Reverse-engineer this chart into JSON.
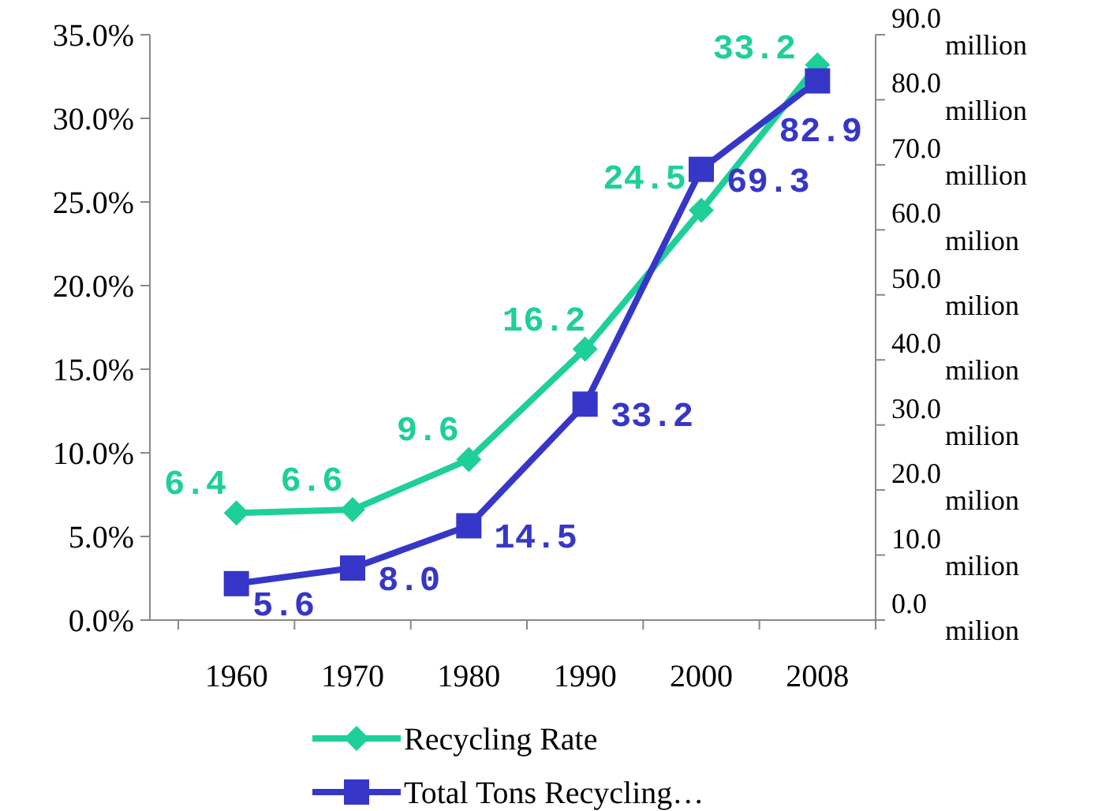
{
  "chart_data": {
    "type": "line",
    "categories": [
      "1960",
      "1970",
      "1980",
      "1990",
      "2000",
      "2008"
    ],
    "series": [
      {
        "name": "Recycling Rate",
        "color": "#1fcf9a",
        "values": [
          6.4,
          6.6,
          9.6,
          16.2,
          24.5,
          33.2
        ],
        "value_labels": [
          "6.4",
          "6.6",
          "9.6",
          "16.2",
          "24.5",
          "33.2"
        ],
        "marker": "diamond"
      },
      {
        "name": "Total Tons Recycling…",
        "color": "#3636c8",
        "values": [
          5.6,
          8.0,
          14.5,
          33.2,
          69.3,
          82.9
        ],
        "value_labels": [
          "5.6",
          "8.0",
          "14.5",
          "33.2",
          "69.3",
          "82.9"
        ],
        "marker": "square",
        "axis": "y2"
      }
    ],
    "ylim": [
      0,
      35
    ],
    "yticks": [
      {
        "value": 0,
        "label": "0.0%"
      },
      {
        "value": 5,
        "label": "5.0%"
      },
      {
        "value": 10,
        "label": "10.0%"
      },
      {
        "value": 15,
        "label": "15.0%"
      },
      {
        "value": 20,
        "label": "20.0%"
      },
      {
        "value": 25,
        "label": "25.0%"
      },
      {
        "value": 30,
        "label": "30.0%"
      },
      {
        "value": 35,
        "label": "35.0%"
      }
    ],
    "y2lim": [
      0,
      90
    ],
    "y2ticks": [
      {
        "value": 0,
        "label": "0.0 milion"
      },
      {
        "value": 10,
        "label": "10.0 milion"
      },
      {
        "value": 20,
        "label": "20.0 milion"
      },
      {
        "value": 30,
        "label": "30.0 milion"
      },
      {
        "value": 40,
        "label": "40.0 milion"
      },
      {
        "value": 50,
        "label": "50.0 milion"
      },
      {
        "value": 60,
        "label": "60.0 milion"
      },
      {
        "value": 70,
        "label": "70.0 million"
      },
      {
        "value": 80,
        "label": "80.0 million"
      },
      {
        "value": 90,
        "label": "90.0 million"
      }
    ],
    "legend": "bottom",
    "grid": false,
    "line_style": "solid"
  }
}
